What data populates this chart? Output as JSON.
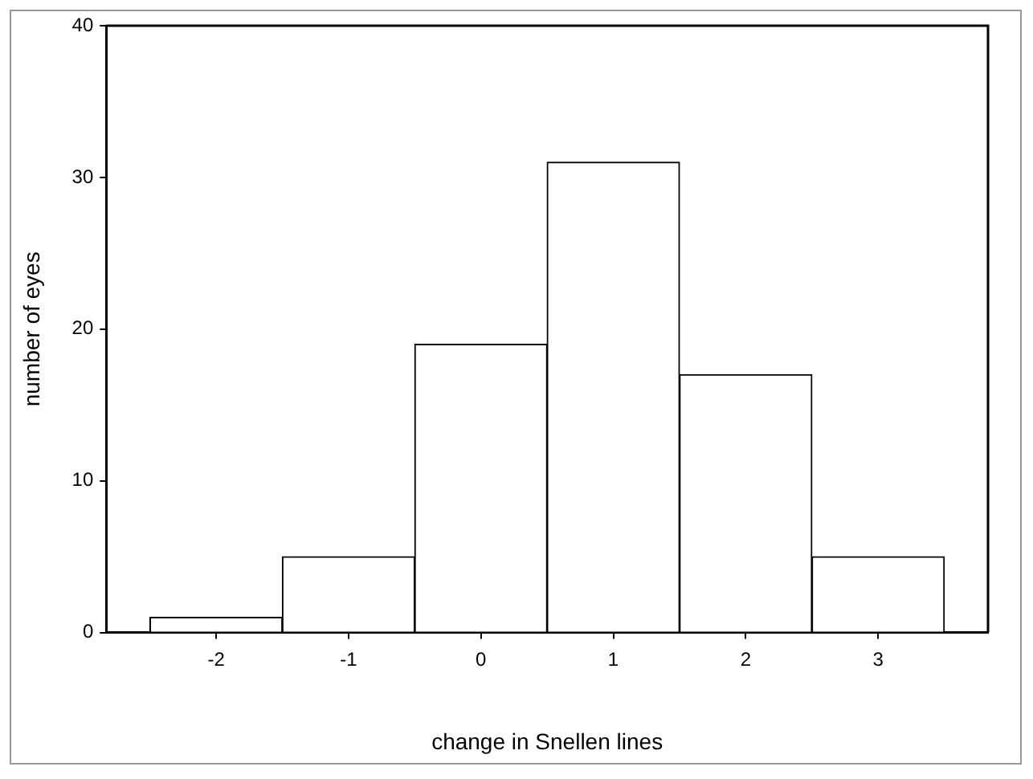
{
  "chart_data": {
    "type": "histogram",
    "xlabel": "change in Snellen lines",
    "ylabel": "number of eyes",
    "bins": [
      -2.5,
      -1.5,
      -0.5,
      0.5,
      1.5,
      2.5,
      3.5
    ],
    "values": [
      1,
      5,
      19,
      31,
      17,
      5
    ],
    "color": "#ffffff",
    "xlim": [
      -2.83,
      3.83
    ],
    "xticks": [
      -2,
      -1,
      0,
      1,
      2,
      3
    ],
    "ylim": [
      0,
      40
    ],
    "yticks": [
      0,
      10,
      20,
      30,
      40
    ],
    "grid": false,
    "legend": false
  }
}
